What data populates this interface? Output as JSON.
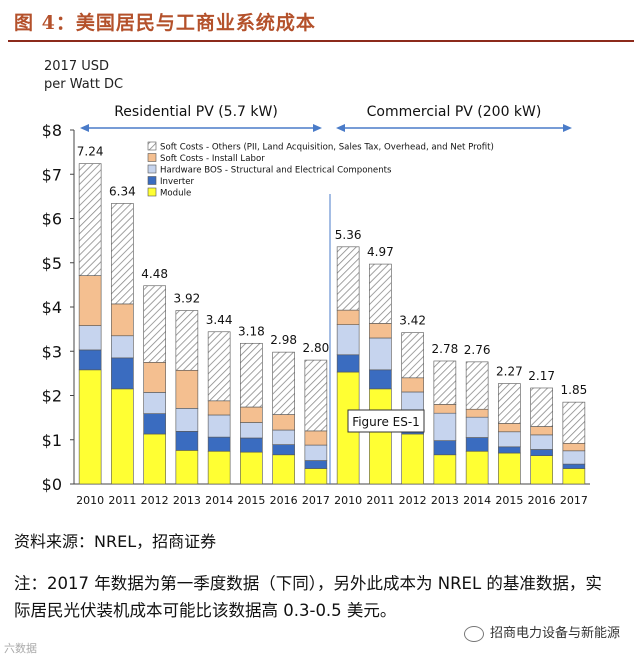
{
  "figure_title": "图 4：美国居民与工商业系统成本",
  "source": "资料来源：NREL，招商证券",
  "note": "注：2017 年数据为第一季度数据（下同），另外此成本为 NREL 的基准数据，实际居民光伏装机成本可能比该数据高 0.3-0.5 美元。",
  "watermark": "招商电力设备与新能源",
  "watermark_left": "六数据",
  "chart_data": {
    "type": "bar",
    "stacked": true,
    "ylabel_line1": "2017 USD",
    "ylabel_line2": "per Watt DC",
    "ylim": [
      0,
      8
    ],
    "yticks": [
      0,
      1,
      2,
      3,
      4,
      5,
      6,
      7,
      8
    ],
    "ytick_labels": [
      "$0",
      "$1",
      "$2",
      "$3",
      "$4",
      "$5",
      "$6",
      "$7",
      "$8"
    ],
    "segments": [
      "Soft Costs - Others (PII, Land Acquisition, Sales Tax, Overhead, and Net Profit)",
      "Soft Costs - Install Labor",
      "Hardware BOS - Structural and Electrical Components",
      "Inverter",
      "Module"
    ],
    "segment_colors": {
      "Module": "#ffff33",
      "Inverter": "#3a6cc0",
      "Hardware BOS - Structural and Electrical Components": "#c6d4ee",
      "Soft Costs - Install Labor": "#f4bf90",
      "Soft Costs - Others (PII, Land Acquisition, Sales Tax, Overhead, and Net Profit)": "hatch"
    },
    "legend": [
      {
        "key": "others",
        "label": "Soft Costs - Others (PII, Land Acquisition, Sales Tax, Overhead, and Net Profit)",
        "color": "hatch"
      },
      {
        "key": "labor",
        "label": "Soft Costs - Install Labor",
        "color": "#f4bf90"
      },
      {
        "key": "bos",
        "label": "Hardware BOS - Structural and Electrical Components",
        "color": "#c6d4ee"
      },
      {
        "key": "inverter",
        "label": "Inverter",
        "color": "#3a6cc0"
      },
      {
        "key": "module",
        "label": "Module",
        "color": "#ffff33"
      }
    ],
    "groups": [
      {
        "name": "Residential PV (5.7 kW)",
        "categories": [
          "2010",
          "2011",
          "2012",
          "2013",
          "2014",
          "2015",
          "2016",
          "2017"
        ],
        "totals": [
          7.24,
          6.34,
          4.48,
          3.92,
          3.44,
          3.18,
          2.98,
          2.8
        ],
        "total_labels": [
          "7.24",
          "6.34",
          "4.48",
          "3.92",
          "3.44",
          "3.18",
          "2.98",
          "2.80"
        ],
        "module": [
          2.58,
          2.15,
          1.13,
          0.76,
          0.74,
          0.72,
          0.66,
          0.35
        ],
        "inverter": [
          0.45,
          0.7,
          0.46,
          0.43,
          0.32,
          0.32,
          0.23,
          0.18
        ],
        "bos": [
          0.55,
          0.5,
          0.48,
          0.52,
          0.5,
          0.35,
          0.33,
          0.35
        ],
        "labor": [
          1.13,
          0.72,
          0.68,
          0.86,
          0.32,
          0.35,
          0.35,
          0.32
        ]
      },
      {
        "name": "Commercial PV (200 kW)",
        "categories": [
          "2010",
          "2011",
          "2012",
          "2013",
          "2014",
          "2015",
          "2016",
          "2017"
        ],
        "totals": [
          5.36,
          4.97,
          3.42,
          2.78,
          2.76,
          2.27,
          2.17,
          1.85
        ],
        "total_labels": [
          "5.36",
          "4.97",
          "3.42",
          "2.78",
          "2.76",
          "2.27",
          "2.17",
          "1.85"
        ],
        "module": [
          2.53,
          2.15,
          1.13,
          0.66,
          0.74,
          0.7,
          0.64,
          0.35
        ],
        "inverter": [
          0.39,
          0.43,
          0.47,
          0.32,
          0.31,
          0.14,
          0.14,
          0.1
        ],
        "bos": [
          0.68,
          0.72,
          0.48,
          0.62,
          0.46,
          0.34,
          0.33,
          0.3
        ],
        "labor": [
          0.33,
          0.33,
          0.32,
          0.2,
          0.18,
          0.19,
          0.19,
          0.17
        ]
      }
    ],
    "annotation": "Figure ES-1"
  }
}
